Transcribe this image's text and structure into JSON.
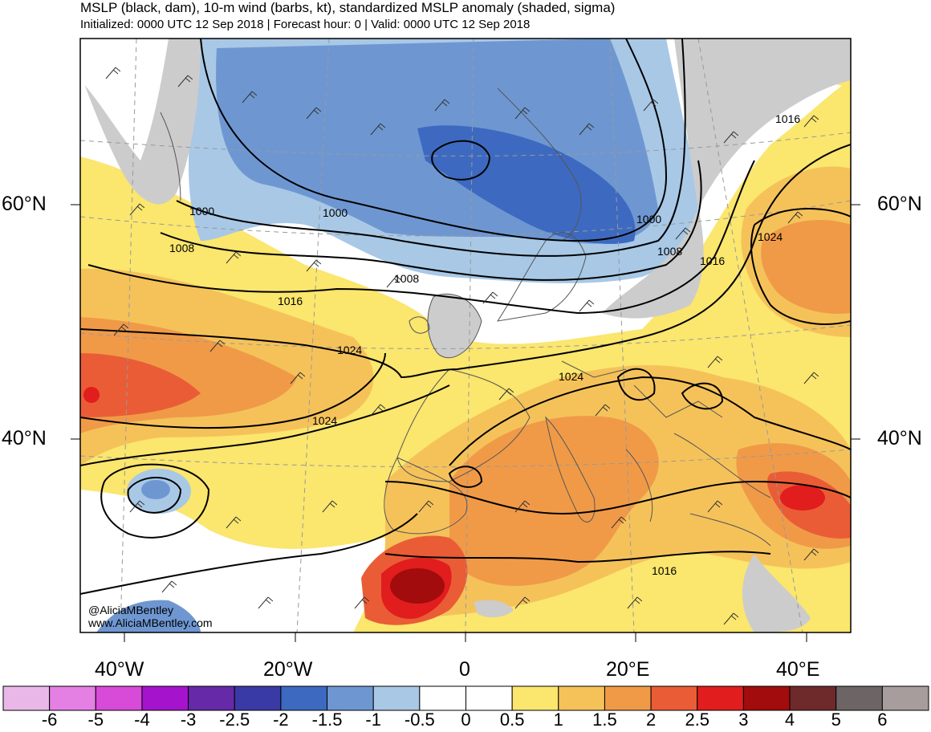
{
  "header": {
    "title": "MSLP (black, dam), 10-m wind (barbs, kt), standardized MSLP anomaly (shaded, sigma)",
    "subtitle": "Initialized: 0000 UTC 12 Sep 2018 | Forecast hour: 0 | Valid: 0000 UTC 12 Sep 2018"
  },
  "axes": {
    "lat_labels": [
      "60°N",
      "40°N"
    ],
    "lon_labels": [
      "40°W",
      "20°W",
      "0",
      "20°E",
      "40°E"
    ]
  },
  "contour_labels": [
    "1000",
    "1000",
    "1000",
    "1008",
    "1008",
    "1008",
    "1016",
    "1016",
    "1016",
    "1024",
    "1024",
    "1024",
    "1024",
    "1016"
  ],
  "credits": {
    "handle": "@AliciaMBentley",
    "website": "www.AliciaMBentley.com"
  },
  "colorbar": {
    "labels": [
      "-6",
      "-5",
      "-4",
      "-3",
      "-2.5",
      "-2",
      "-1.5",
      "-1",
      "-0.5",
      "0",
      "0.5",
      "1",
      "1.5",
      "2",
      "2.5",
      "3",
      "4",
      "5",
      "6"
    ],
    "colors": [
      "#eab8e8",
      "#e47fe4",
      "#d84ad8",
      "#a514cc",
      "#6629a8",
      "#3a3aa6",
      "#3d6ac0",
      "#6e97d2",
      "#a8c8e6",
      "#ffffff",
      "#ffffff",
      "#fbe66e",
      "#f5c25a",
      "#f09a48",
      "#ea5c36",
      "#e11d1d",
      "#a20c0c",
      "#6e2a2a",
      "#6d6565",
      "#a89d9d"
    ]
  },
  "legend_colors": {
    "land_neutral": "#cccccc",
    "neg_1": "#a8c8e6",
    "neg_15": "#6e97d2",
    "neg_2": "#3d6ac0",
    "pos_05": "#fbe66e",
    "pos_1": "#f5c25a",
    "pos_15": "#f09a48",
    "pos_2": "#ea5c36",
    "pos_25": "#e11d1d",
    "pos_3": "#a20c0c"
  }
}
